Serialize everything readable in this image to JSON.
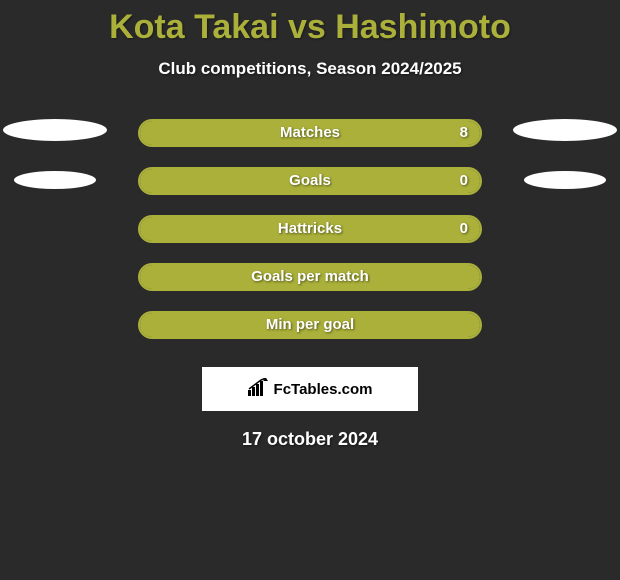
{
  "colors": {
    "background": "#2a2a2a",
    "accent": "#aab03a",
    "text_light": "#ffffff",
    "oval": "#ffffff",
    "logo_bg": "#ffffff",
    "logo_text": "#000000"
  },
  "typography": {
    "title_fontsize": 34,
    "subtitle_fontsize": 17,
    "bar_label_fontsize": 15,
    "date_fontsize": 18
  },
  "title": "Kota Takai vs Hashimoto",
  "subtitle": "Club competitions, Season 2024/2025",
  "bars": [
    {
      "label": "Matches",
      "value_left": "",
      "value_right": "8",
      "fill_left_pct": 0,
      "fill_right_pct": 100
    },
    {
      "label": "Goals",
      "value_left": "",
      "value_right": "0",
      "fill_left_pct": 0,
      "fill_right_pct": 100
    },
    {
      "label": "Hattricks",
      "value_left": "",
      "value_right": "0",
      "fill_left_pct": 0,
      "fill_right_pct": 100
    },
    {
      "label": "Goals per match",
      "value_left": "",
      "value_right": "",
      "fill_left_pct": 0,
      "fill_right_pct": 100
    },
    {
      "label": "Min per goal",
      "value_left": "",
      "value_right": "",
      "fill_left_pct": 0,
      "fill_right_pct": 100
    }
  ],
  "left_ovals": [
    {
      "size": "big"
    },
    {
      "size": "small"
    }
  ],
  "right_ovals": [
    {
      "size": "big"
    },
    {
      "size": "small"
    }
  ],
  "logo_text": "FcTables.com",
  "date": "17 october 2024",
  "bar_style": {
    "height": 24,
    "border_width": 2,
    "border_radius": 14,
    "gap": 20,
    "fill_color": "#aab03a",
    "border_color": "#aab03a"
  }
}
